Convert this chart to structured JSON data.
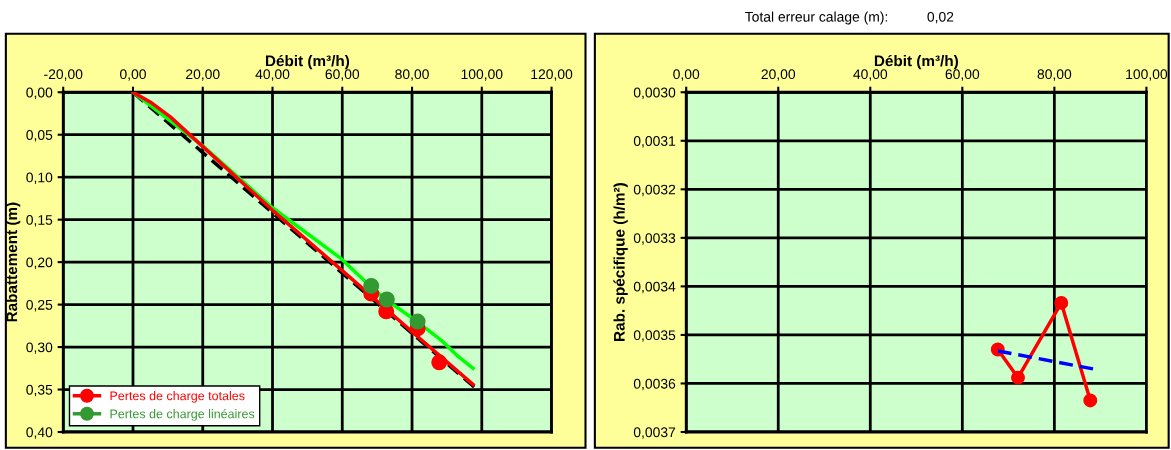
{
  "chart_data": [
    {
      "type": "line",
      "xlabel": "Débit (m³/h)",
      "ylabel": "Rabattement (m)",
      "xlim": [
        -20,
        120
      ],
      "xticks": [
        {
          "value": -20,
          "label": "-20,00"
        },
        {
          "value": 0,
          "label": "0,00"
        },
        {
          "value": 20,
          "label": "20,00"
        },
        {
          "value": 40,
          "label": "40,00"
        },
        {
          "value": 60,
          "label": "60,00"
        },
        {
          "value": 80,
          "label": "80,00"
        },
        {
          "value": 100,
          "label": "100,00"
        },
        {
          "value": 120,
          "label": "120,00"
        }
      ],
      "ylim": [
        0.4,
        0
      ],
      "yticks": [
        {
          "value": 0,
          "label": "0,00"
        },
        {
          "value": 0.05,
          "label": "0,05"
        },
        {
          "value": 0.1,
          "label": "0,10"
        },
        {
          "value": 0.15,
          "label": "0,15"
        },
        {
          "value": 0.2,
          "label": "0,20"
        },
        {
          "value": 0.25,
          "label": "0,25"
        },
        {
          "value": 0.3,
          "label": "0,30"
        },
        {
          "value": 0.35,
          "label": "0,35"
        },
        {
          "value": 0.4,
          "label": "0,40"
        }
      ],
      "grid": true,
      "legend": "bottom left",
      "series": [
        {
          "type": "line",
          "color": "#000000",
          "line_style": "dashed",
          "marker": "none",
          "x": [
            0,
            97.8
          ],
          "values": [
            0,
            0.347
          ]
        },
        {
          "type": "line",
          "color": "#00ff00",
          "marker": "none",
          "x": [
            0,
            20,
            40,
            59.7,
            68,
            72.5,
            81.5,
            88.4,
            93.2,
            97.5
          ],
          "values": [
            0,
            0.063,
            0.136,
            0.196,
            0.228,
            0.244,
            0.27,
            0.292,
            0.311,
            0.325
          ]
        },
        {
          "type": "line",
          "color": "#ff0000",
          "marker": "none",
          "x": [
            0,
            5.3,
            10.7,
            20,
            40,
            60,
            80,
            97.5
          ],
          "values": [
            0,
            0.0125,
            0.029,
            0.064,
            0.139,
            0.21,
            0.282,
            0.344
          ]
        },
        {
          "type": "scatter",
          "name": "Pertes de charge totales",
          "color": "#ff0000",
          "marker": "circle",
          "x": [
            68.3,
            72.6,
            81.6,
            87.8
          ],
          "values": [
            0.237,
            0.258,
            0.278,
            0.318
          ]
        },
        {
          "type": "scatter",
          "name": "Pertes de charge linéaires",
          "color": "#339933",
          "marker": "circle",
          "x": [
            68.3,
            72.8,
            81.6
          ],
          "values": [
            0.228,
            0.244,
            0.27
          ]
        }
      ]
    },
    {
      "type": "line",
      "xlabel": "Débit (m³/h)",
      "ylabel": "Rab. spécifique (h/m²)",
      "xlim": [
        0,
        100
      ],
      "xticks": [
        {
          "value": 0,
          "label": "0,00"
        },
        {
          "value": 20,
          "label": "20,00"
        },
        {
          "value": 40,
          "label": "40,00"
        },
        {
          "value": 60,
          "label": "60,00"
        },
        {
          "value": 80,
          "label": "80,00"
        },
        {
          "value": 100,
          "label": "100,00"
        }
      ],
      "ylim": [
        0.0037,
        0.003
      ],
      "yticks": [
        {
          "value": 0.003,
          "label": "0,0030"
        },
        {
          "value": 0.0031,
          "label": "0,0031"
        },
        {
          "value": 0.0032,
          "label": "0,0032"
        },
        {
          "value": 0.0033,
          "label": "0,0033"
        },
        {
          "value": 0.0034,
          "label": "0,0034"
        },
        {
          "value": 0.0035,
          "label": "0,0035"
        },
        {
          "value": 0.0036,
          "label": "0,0036"
        },
        {
          "value": 0.0037,
          "label": "0,0037"
        }
      ],
      "grid": true,
      "annotations": [
        "Total erreur calage (m):          0,02"
      ],
      "series": [
        {
          "type": "line",
          "color": "#ff0000",
          "marker": "circle",
          "x": [
            67.7,
            72.1,
            81.5,
            87.8
          ],
          "values": [
            0.00353,
            0.003588,
            0.003434,
            0.003635
          ]
        },
        {
          "type": "line",
          "color": "#0000ff",
          "line_style": "dashed",
          "marker": "none",
          "x": [
            67.7,
            88.4
          ],
          "values": [
            0.003533,
            0.00357
          ]
        }
      ]
    }
  ]
}
